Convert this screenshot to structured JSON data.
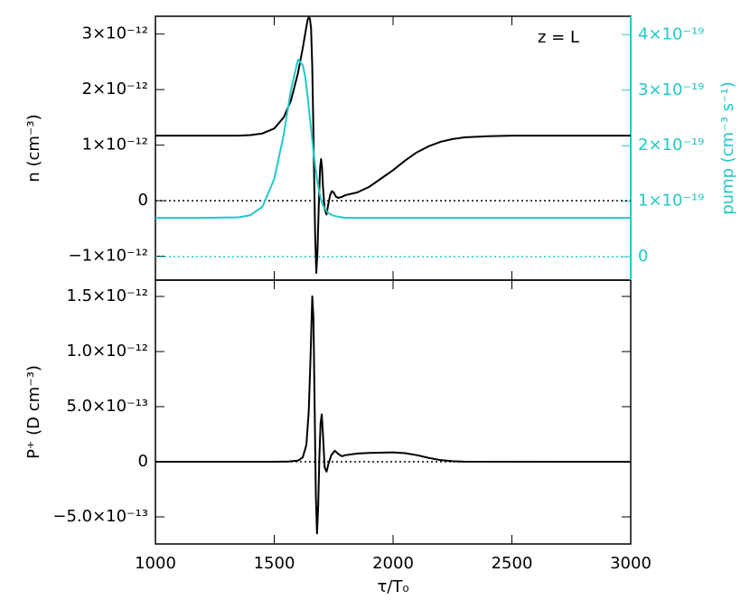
{
  "chart_data": [
    {
      "type": "line",
      "ylabel": "n (cm⁻³)",
      "y2label": "pump (cm⁻³ s⁻¹)",
      "annotation": "z = L",
      "y2color": "#22c8c8",
      "xlim": [
        1000,
        3000
      ],
      "xticks": [
        1000,
        1500,
        2000,
        2500,
        3000
      ],
      "ylim": [
        -1.43e-12,
        3.32e-12
      ],
      "yticks": [
        {
          "value": -1e-12,
          "label": "−1×10⁻¹²"
        },
        0,
        {
          "value": 1e-12,
          "label": "1×10⁻¹²"
        },
        {
          "value": 2e-12,
          "label": "2×10⁻¹²"
        },
        {
          "value": 3e-12,
          "label": "3×10⁻¹²"
        }
      ],
      "y2lim": [
        -4.2e-20,
        4.33e-19
      ],
      "y2ticks": [
        0,
        {
          "value": 1e-19,
          "label": "1×10⁻¹⁹"
        },
        {
          "value": 2e-19,
          "label": "2×10⁻¹⁹"
        },
        {
          "value": 3e-19,
          "label": "3×10⁻¹⁹"
        },
        {
          "value": 4e-19,
          "label": "4×10⁻¹⁹"
        }
      ],
      "hlines": [
        {
          "value": 0,
          "color": "#000000"
        },
        {
          "value": 0,
          "axis": "y2",
          "color": "#22c8c8"
        }
      ],
      "x": [
        1000,
        1200,
        1350,
        1400,
        1450,
        1500,
        1540,
        1570,
        1600,
        1620,
        1630,
        1640,
        1645,
        1650,
        1655,
        1660,
        1665,
        1668,
        1672,
        1677,
        1682,
        1688,
        1693,
        1697,
        1701,
        1705,
        1712,
        1720,
        1728,
        1735,
        1742,
        1750,
        1760,
        1770,
        1785,
        1800,
        1850,
        1900,
        1950,
        2000,
        2050,
        2100,
        2150,
        2200,
        2250,
        2300,
        2400,
        2500,
        2600,
        3000
      ],
      "series": [
        {
          "color": "#000000",
          "values": [
            1.17e-12,
            1.17e-12,
            1.17e-12,
            1.18e-12,
            1.21e-12,
            1.3e-12,
            1.5e-12,
            1.8e-12,
            2.3e-12,
            2.75e-12,
            3e-12,
            3.25e-12,
            3.3e-12,
            3.28e-12,
            3.1e-12,
            2.4e-12,
            1.2e-12,
            4e-13,
            -6e-13,
            -1.3e-12,
            -9e-13,
            0,
            6e-13,
            7.5e-13,
            6e-13,
            2.5e-13,
            -1.5e-13,
            -2.5e-13,
            -5e-14,
            1e-13,
            1.7e-13,
            1.5e-13,
            7e-14,
            5e-14,
            7e-14,
            1e-13,
            1.5e-13,
            2.5e-13,
            4e-13,
            5.5e-13,
            7.2e-13,
            8.7e-13,
            9.8e-13,
            1.06e-12,
            1.11e-12,
            1.14e-12,
            1.16e-12,
            1.17e-12,
            1.17e-12,
            1.17e-12
          ]
        },
        {
          "color": "#22c8c8",
          "axis": "y2",
          "values": [
            7e-20,
            7e-20,
            7.1e-20,
            7.5e-20,
            9e-20,
            1.4e-19,
            2.2e-19,
            3e-19,
            3.55e-19,
            3.45e-19,
            3.25e-19,
            2.9e-19,
            2.7e-19,
            2.5e-19,
            2.3e-19,
            2.1e-19,
            1.9e-19,
            1.8e-19,
            1.65e-19,
            1.5e-19,
            1.35e-19,
            1.2e-19,
            1.1e-19,
            1.02e-19,
            9.7e-20,
            9.3e-20,
            8.7e-20,
            8.2e-20,
            7.9e-20,
            7.7e-20,
            7.5e-20,
            7.4e-20,
            7.3e-20,
            7.2e-20,
            7.1e-20,
            7e-20,
            7e-20,
            7e-20,
            7e-20,
            7e-20,
            7e-20,
            7e-20,
            7e-20,
            7e-20,
            7e-20,
            7e-20,
            7e-20,
            7e-20,
            7e-20,
            7e-20
          ]
        }
      ]
    },
    {
      "type": "line",
      "ylabel": "P⁺ (D cm⁻³)",
      "xlabel": "τ/T₀",
      "xlim": [
        1000,
        3000
      ],
      "xticks": [
        1000,
        1500,
        2000,
        2500,
        3000
      ],
      "ylim": [
        -7.46e-13,
        1.648e-12
      ],
      "yticks": [
        {
          "value": -5e-13,
          "label": "−5.0×10⁻¹³"
        },
        0,
        {
          "value": 5e-13,
          "label": "5.0×10⁻¹³"
        },
        {
          "value": 1e-12,
          "label": "1.0×10⁻¹²"
        },
        {
          "value": 1.5e-12,
          "label": "1.5×10⁻¹²"
        }
      ],
      "hlines": [
        {
          "value": 0,
          "color": "#000000"
        }
      ],
      "x": [
        1000,
        1500,
        1560,
        1600,
        1620,
        1635,
        1645,
        1652,
        1660,
        1665,
        1670,
        1675,
        1680,
        1685,
        1690,
        1695,
        1700,
        1705,
        1712,
        1720,
        1728,
        1740,
        1755,
        1770,
        1785,
        1800,
        1850,
        1900,
        2000,
        2050,
        2100,
        2150,
        2200,
        2250,
        2300,
        3000
      ],
      "series": [
        {
          "color": "#000000",
          "values": [
            0,
            0,
            2e-15,
            1e-14,
            4e-14,
            1.5e-13,
            4.5e-13,
            9e-13,
            1.5e-12,
            1.3e-12,
            5e-13,
            -3e-13,
            -6.5e-13,
            -4e-13,
            5e-14,
            3.5e-13,
            4.3e-13,
            2.5e-13,
            -5e-14,
            -9e-14,
            -2e-14,
            6e-14,
            1e-13,
            7e-14,
            5e-14,
            6e-14,
            7.5e-14,
            8e-14,
            8.5e-14,
            7.8e-14,
            6e-14,
            3.5e-14,
            1.5e-14,
            5e-15,
            1e-15,
            0
          ]
        }
      ]
    }
  ]
}
